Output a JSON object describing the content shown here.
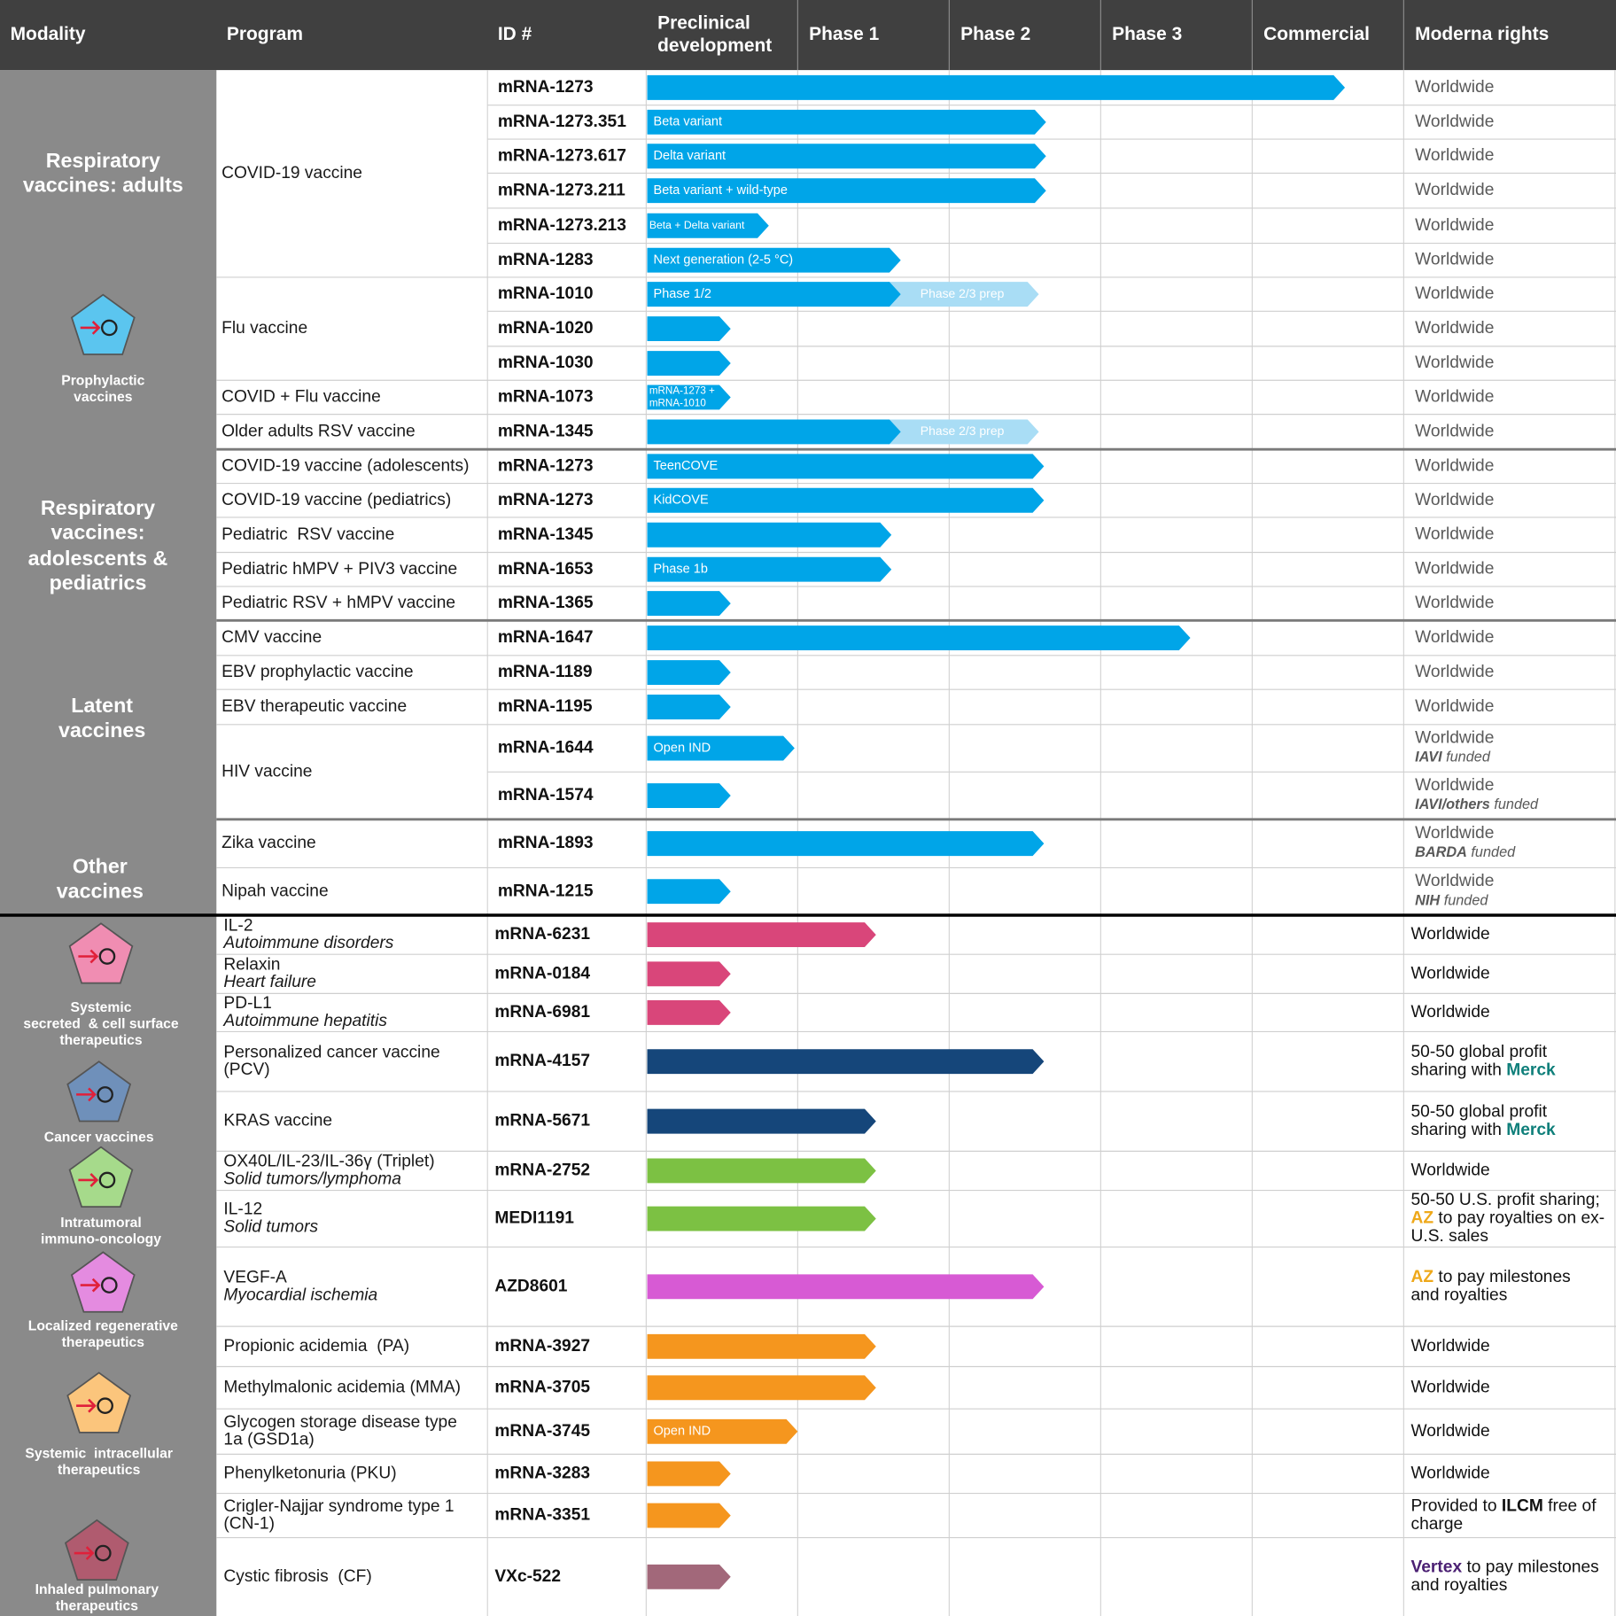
{
  "header": [
    [
      "Modality"
    ],
    [
      "Program"
    ],
    [
      "ID #"
    ],
    [
      "Preclinical",
      "development"
    ],
    [
      "Phase 1"
    ],
    [
      "Phase 2"
    ],
    [
      "Phase 3"
    ],
    [
      "Commercial"
    ],
    [
      "Moderna rights"
    ]
  ],
  "modality": [
    {
      "lines": [
        "Respiratory",
        "vaccines: adults"
      ]
    },
    {
      "lines": [
        "Respiratory",
        "vaccines:",
        "adolescents &",
        "pediatrics"
      ]
    },
    {
      "lines": [
        "Latent",
        "vaccines"
      ]
    },
    {
      "lines": [
        "Other",
        "vaccines"
      ]
    }
  ],
  "icons": [
    {
      "label": [
        "Prophylactic",
        "vaccines"
      ]
    },
    {
      "label": [
        "Systemic",
        "secreted  & cell surface",
        "therapeutics"
      ]
    },
    {
      "label": [
        "Cancer vaccines"
      ]
    },
    {
      "label": [
        "Intratumoral",
        "immuno-oncology"
      ]
    },
    {
      "label": [
        "Localized regenerative",
        "therapeutics"
      ]
    },
    {
      "label": [
        "Systemic  intracellular",
        "therapeutics"
      ]
    },
    {
      "label": [
        "Inhaled pulmonary",
        "therapeutics"
      ]
    }
  ],
  "rows": [
    {
      "program": [
        {
          "t": "COVID-19 vaccine"
        }
      ],
      "id": "mRNA-1273",
      "rights": [
        [
          {
            "t": "Worldwide"
          }
        ]
      ]
    },
    {
      "id": "mRNA-1273.351",
      "bar": [
        "Beta variant"
      ],
      "rights": [
        [
          {
            "t": "Worldwide"
          }
        ]
      ]
    },
    {
      "id": "mRNA-1273.617",
      "bar": [
        "Delta variant"
      ],
      "rights": [
        [
          {
            "t": "Worldwide"
          }
        ]
      ]
    },
    {
      "id": "mRNA-1273.211",
      "bar": [
        "Beta variant + wild-type"
      ],
      "rights": [
        [
          {
            "t": "Worldwide"
          }
        ]
      ]
    },
    {
      "id": "mRNA-1273.213",
      "bar": [
        "Beta + Delta variant"
      ],
      "rights": [
        [
          {
            "t": "Worldwide"
          }
        ]
      ]
    },
    {
      "id": "mRNA-1283",
      "bar": [
        "Next generation (2-5 °C)"
      ],
      "rights": [
        [
          {
            "t": "Worldwide"
          }
        ]
      ]
    },
    {
      "program": [
        {
          "t": "Flu vaccine"
        }
      ],
      "id": "mRNA-1010",
      "bar": [
        "Phase 1/2"
      ],
      "extension": "Phase 2/3 prep",
      "rights": [
        [
          {
            "t": "Worldwide"
          }
        ]
      ]
    },
    {
      "id": "mRNA-1020",
      "rights": [
        [
          {
            "t": "Worldwide"
          }
        ]
      ]
    },
    {
      "id": "mRNA-1030",
      "rights": [
        [
          {
            "t": "Worldwide"
          }
        ]
      ]
    },
    {
      "program": [
        {
          "t": "COVID + Flu vaccine"
        }
      ],
      "id": "mRNA-1073",
      "bar": [
        "mRNA-1273 +",
        "mRNA-1010"
      ],
      "rights": [
        [
          {
            "t": "Worldwide"
          }
        ]
      ]
    },
    {
      "program": [
        {
          "t": "Older adults RSV vaccine"
        }
      ],
      "id": "mRNA-1345",
      "extension": "Phase 2/3 prep",
      "rights": [
        [
          {
            "t": "Worldwide"
          }
        ]
      ]
    },
    {
      "program": [
        {
          "t": "COVID-19 vaccine (adolescents)"
        }
      ],
      "id": "mRNA-1273",
      "bar": [
        "TeenCOVE"
      ],
      "rights": [
        [
          {
            "t": "Worldwide"
          }
        ]
      ]
    },
    {
      "program": [
        {
          "t": "COVID-19 vaccine (pediatrics)"
        }
      ],
      "id": "mRNA-1273",
      "bar": [
        "KidCOVE"
      ],
      "rights": [
        [
          {
            "t": "Worldwide"
          }
        ]
      ]
    },
    {
      "program": [
        {
          "t": "Pediatric  RSV vaccine"
        }
      ],
      "id": "mRNA-1345",
      "rights": [
        [
          {
            "t": "Worldwide"
          }
        ]
      ]
    },
    {
      "program": [
        {
          "t": "Pediatric hMPV + PIV3 vaccine"
        }
      ],
      "id": "mRNA-1653",
      "bar": [
        "Phase 1b"
      ],
      "rights": [
        [
          {
            "t": "Worldwide"
          }
        ]
      ]
    },
    {
      "program": [
        {
          "t": "Pediatric RSV + hMPV vaccine"
        }
      ],
      "id": "mRNA-1365",
      "rights": [
        [
          {
            "t": "Worldwide"
          }
        ]
      ]
    },
    {
      "program": [
        {
          "t": "CMV vaccine"
        }
      ],
      "id": "mRNA-1647",
      "rights": [
        [
          {
            "t": "Worldwide"
          }
        ]
      ]
    },
    {
      "program": [
        {
          "t": "EBV prophylactic vaccine"
        }
      ],
      "id": "mRNA-1189",
      "rights": [
        [
          {
            "t": "Worldwide"
          }
        ]
      ]
    },
    {
      "program": [
        {
          "t": "EBV therapeutic vaccine"
        }
      ],
      "id": "mRNA-1195",
      "rights": [
        [
          {
            "t": "Worldwide"
          }
        ]
      ]
    },
    {
      "program": [
        {
          "t": "HIV vaccine"
        }
      ],
      "id": "mRNA-1644",
      "bar": [
        "Open IND"
      ],
      "rights": [
        [
          {
            "t": "Worldwide"
          }
        ],
        [
          {
            "t": "IAVI",
            "b": true,
            "i": true
          },
          {
            "t": " funded",
            "i": true
          }
        ]
      ]
    },
    {
      "id": "mRNA-1574",
      "rights": [
        [
          {
            "t": "Worldwide"
          }
        ],
        [
          {
            "t": "IAVI/others",
            "b": true,
            "i": true
          },
          {
            "t": " funded",
            "i": true
          }
        ]
      ]
    },
    {
      "program": [
        {
          "t": "Zika vaccine"
        }
      ],
      "id": "mRNA-1893",
      "rights": [
        [
          {
            "t": "Worldwide"
          }
        ],
        [
          {
            "t": "BARDA",
            "b": true,
            "i": true
          },
          {
            "t": " funded",
            "i": true
          }
        ]
      ]
    },
    {
      "program": [
        {
          "t": "Nipah vaccine"
        }
      ],
      "id": "mRNA-1215",
      "rights": [
        [
          {
            "t": "Worldwide"
          }
        ],
        [
          {
            "t": "NIH",
            "b": true,
            "i": true
          },
          {
            "t": " funded",
            "i": true
          }
        ]
      ]
    },
    {
      "program": [
        {
          "t": "IL-2"
        },
        {
          "t": "Autoimmune disorders",
          "i": true
        }
      ],
      "id": "mRNA-6231",
      "rights": [
        [
          {
            "t": "Worldwide"
          }
        ]
      ]
    },
    {
      "program": [
        {
          "t": "Relaxin"
        },
        {
          "t": "Heart failure",
          "i": true
        }
      ],
      "id": "mRNA-0184",
      "rights": [
        [
          {
            "t": "Worldwide"
          }
        ]
      ]
    },
    {
      "program": [
        {
          "t": "PD-L1"
        },
        {
          "t": "Autoimmune hepatitis",
          "i": true
        }
      ],
      "id": "mRNA-6981",
      "rights": [
        [
          {
            "t": "Worldwide"
          }
        ]
      ]
    },
    {
      "program": [
        {
          "t": "Personalized cancer vaccine"
        },
        {
          "t": "(PCV)"
        }
      ],
      "id": "mRNA-4157",
      "rights": [
        [
          {
            "t": "50-50 global profit"
          }
        ],
        [
          {
            "t": "sharing with "
          },
          {
            "t": "Merck",
            "b": true,
            "color": "#0f7f7a"
          }
        ]
      ]
    },
    {
      "program": [
        {
          "t": "KRAS vaccine"
        }
      ],
      "id": "mRNA-5671",
      "rights": [
        [
          {
            "t": "50-50 global profit"
          }
        ],
        [
          {
            "t": "sharing with "
          },
          {
            "t": "Merck",
            "b": true,
            "color": "#0f7f7a"
          }
        ]
      ]
    },
    {
      "program": [
        {
          "t": "OX40L/IL-23/IL-36γ (Triplet)"
        },
        {
          "t": "Solid tumors/lymphoma",
          "i": true
        }
      ],
      "id": "mRNA-2752",
      "rights": [
        [
          {
            "t": "Worldwide"
          }
        ]
      ]
    },
    {
      "program": [
        {
          "t": "IL-12"
        },
        {
          "t": "Solid tumors",
          "i": true
        }
      ],
      "id": "MEDI1191",
      "rights": [
        [
          {
            "t": "50-50 U.S. profit sharing;"
          }
        ],
        [
          {
            "t": "AZ",
            "b": true,
            "color": "#eea81a"
          },
          {
            "t": " to pay royalties on ex-"
          }
        ],
        [
          {
            "t": "U.S. sales"
          }
        ]
      ]
    },
    {
      "program": [
        {
          "t": "VEGF-A"
        },
        {
          "t": "Myocardial ischemia",
          "i": true
        }
      ],
      "id": "AZD8601",
      "rights": [
        [
          {
            "t": "AZ",
            "b": true,
            "color": "#eea81a"
          },
          {
            "t": " to pay milestones"
          }
        ],
        [
          {
            "t": "and royalties"
          }
        ]
      ]
    },
    {
      "program": [
        {
          "t": "Propionic acidemia  (PA)"
        }
      ],
      "id": "mRNA-3927",
      "rights": [
        [
          {
            "t": "Worldwide"
          }
        ]
      ]
    },
    {
      "program": [
        {
          "t": "Methylmalonic acidemia (MMA)"
        }
      ],
      "id": "mRNA-3705",
      "rights": [
        [
          {
            "t": "Worldwide"
          }
        ]
      ]
    },
    {
      "program": [
        {
          "t": "Glycogen storage disease type"
        },
        {
          "t": "1a (GSD1a)"
        }
      ],
      "id": "mRNA-3745",
      "bar": [
        "Open IND"
      ],
      "rights": [
        [
          {
            "t": "Worldwide"
          }
        ]
      ]
    },
    {
      "program": [
        {
          "t": "Phenylketonuria (PKU)"
        }
      ],
      "id": "mRNA-3283",
      "rights": [
        [
          {
            "t": "Worldwide"
          }
        ]
      ]
    },
    {
      "program": [
        {
          "t": "Crigler-Najjar syndrome type 1"
        },
        {
          "t": "(CN-1)"
        }
      ],
      "id": "mRNA-3351",
      "rights": [
        [
          {
            "t": "Provided to "
          },
          {
            "t": "ILCM",
            "b": true
          },
          {
            "t": " free of"
          }
        ],
        [
          {
            "t": "charge"
          }
        ]
      ]
    },
    {
      "program": [
        {
          "t": "Cystic fibrosis  (CF)"
        }
      ],
      "id": "VXc-522",
      "rights": [
        [
          {
            "t": "Vertex",
            "b": true,
            "color": "#4b2073"
          },
          {
            "t": " to pay milestones"
          }
        ],
        [
          {
            "t": "and royalties"
          }
        ]
      ]
    }
  ]
}
